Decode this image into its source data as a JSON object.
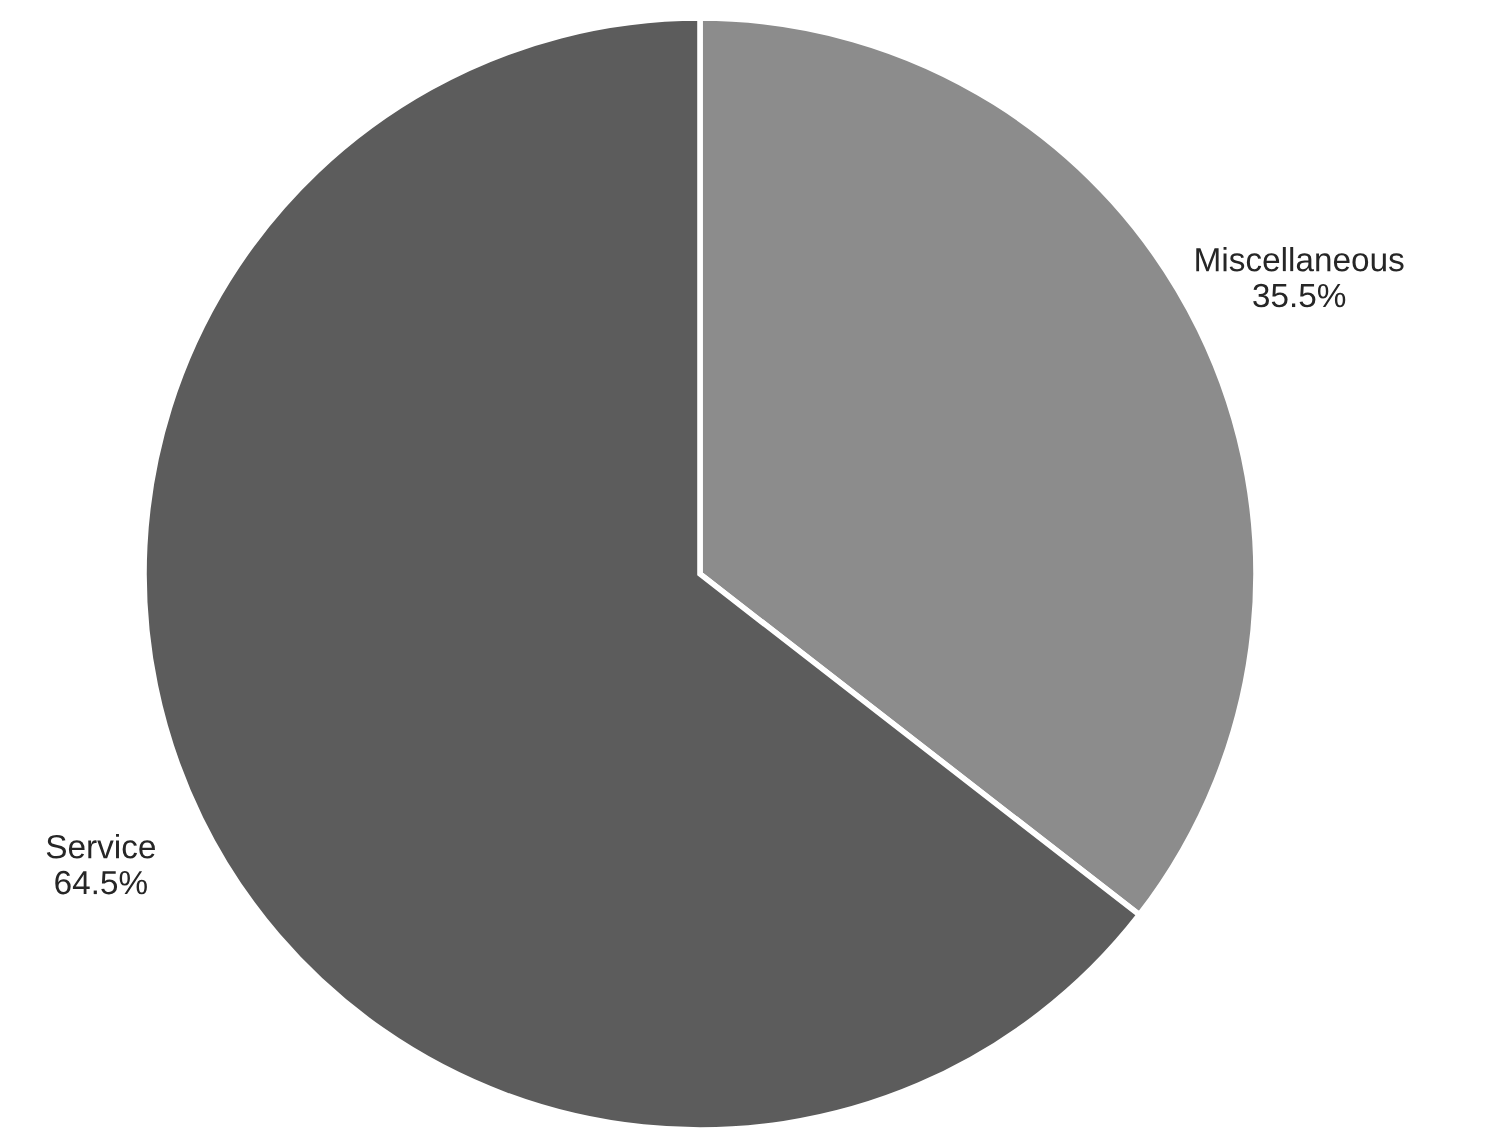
{
  "chart_data": {
    "type": "pie",
    "categories": [
      "Miscellaneous",
      "Service"
    ],
    "values": [
      35.5,
      64.5
    ],
    "value_labels": [
      "35.5%",
      "64.5%"
    ],
    "colors": [
      "#8c8c8c",
      "#5c5c5c"
    ]
  }
}
